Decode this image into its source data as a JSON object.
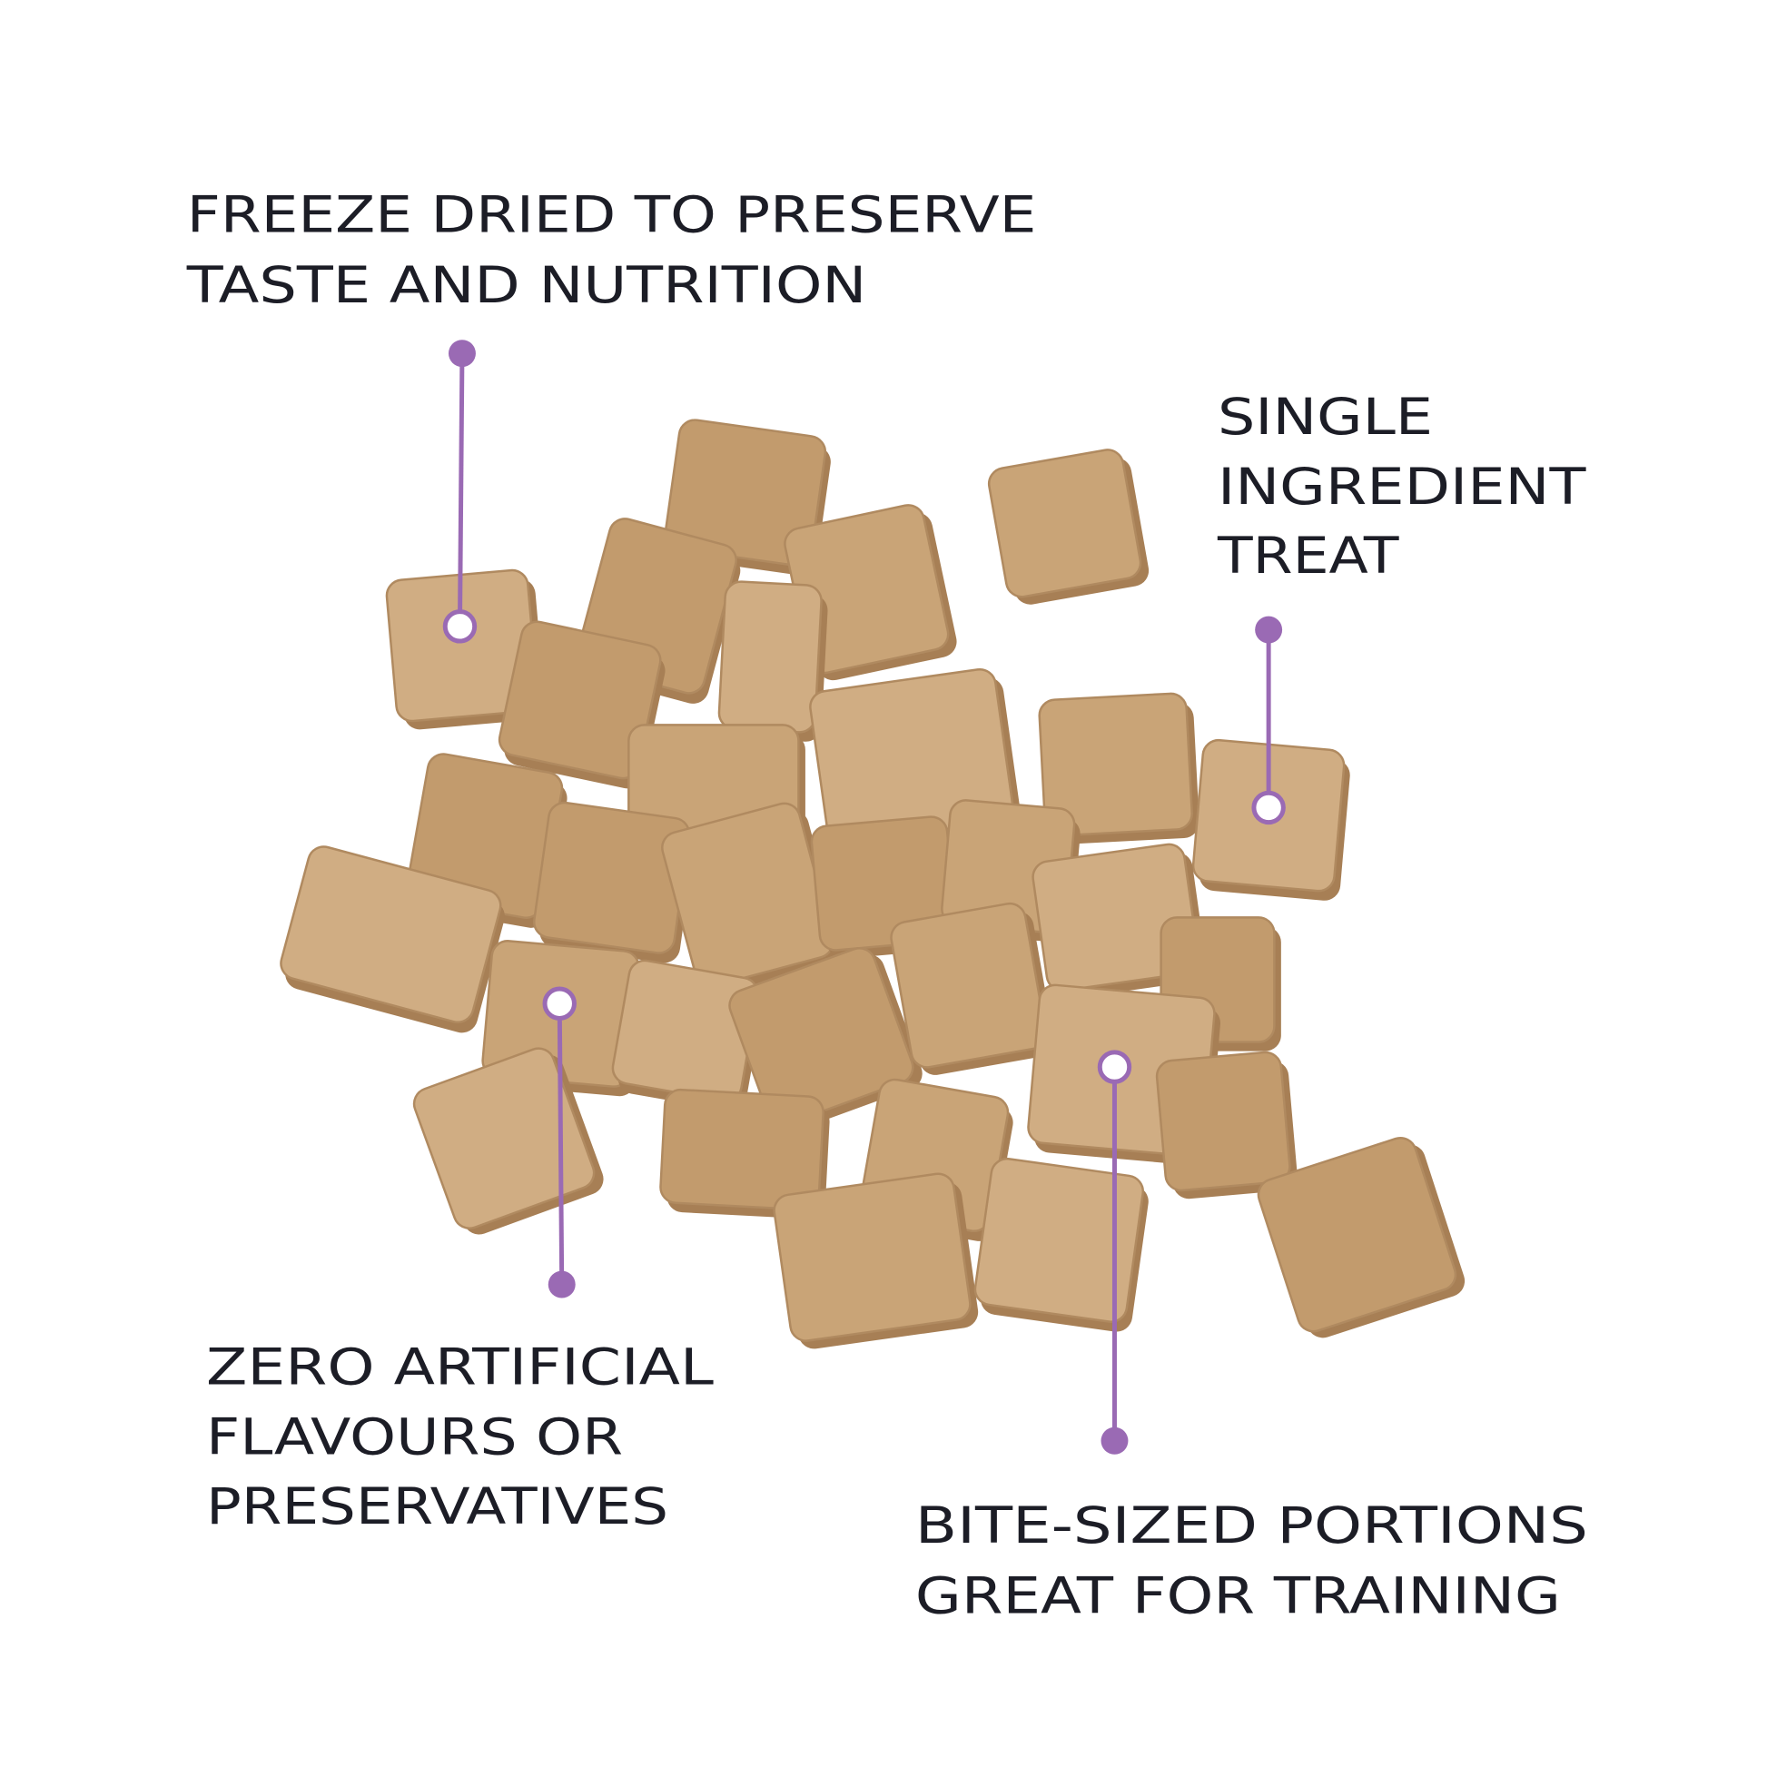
{
  "colors": {
    "background": "#ffffff",
    "text": "#1c1d26",
    "accent_purple": "#9a6ab4",
    "treat_fill": "#c9a477",
    "treat_shadow": "#a77f55"
  },
  "callouts": [
    {
      "id": "freeze-dried",
      "lines": [
        "FREEZE DRIED TO PRESERVE",
        "TASTE AND NUTRITION"
      ]
    },
    {
      "id": "single-ingredient",
      "lines": [
        "SINGLE",
        "INGREDIENT",
        "TREAT"
      ]
    },
    {
      "id": "zero-artificial",
      "lines": [
        "ZERO ARTIFICIAL",
        "FLAVOURS OR",
        "PRESERVATIVES"
      ]
    },
    {
      "id": "bite-sized",
      "lines": [
        "BITE-SIZED PORTIONS",
        "GREAT FOR TRAINING"
      ]
    }
  ],
  "image": {
    "subject": "freeze-dried-treat-cubes"
  }
}
